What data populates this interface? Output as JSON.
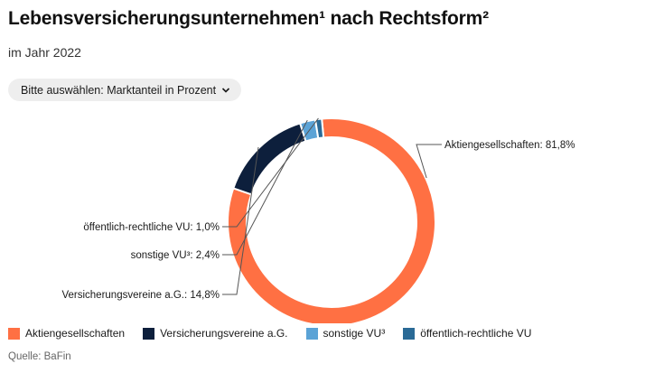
{
  "header": {
    "title": "Lebensversicherungsunternehmen¹ nach Rechtsform²",
    "subtitle": "im Jahr 2022"
  },
  "selector": {
    "label": "Bitte auswählen: Marktanteil in Prozent",
    "icon": "chevron-down-icon"
  },
  "chart_data": {
    "type": "pie",
    "style": "donut",
    "slices": [
      {
        "name": "Aktiengesellschaften",
        "value": 81.8,
        "label": "Aktiengesellschaften: 81,8%",
        "color": "#ff7043"
      },
      {
        "name": "Versicherungsvereine a.G.",
        "value": 14.8,
        "label": "Versicherungsvereine a.G.: 14,8%",
        "color": "#0d1f3c"
      },
      {
        "name": "sonstige VU³",
        "value": 2.4,
        "label": "sonstige VU³: 2,4%",
        "color": "#5ba3d6"
      },
      {
        "name": "öffentlich-rechtliche VU",
        "value": 1.0,
        "label": "öffentlich-rechtliche VU: 1,0%",
        "color": "#2a6a96"
      }
    ],
    "legend_position": "bottom-left"
  },
  "legend": [
    {
      "label": "Aktiengesellschaften",
      "color": "#ff7043"
    },
    {
      "label": "Versicherungsvereine a.G.",
      "color": "#0d1f3c"
    },
    {
      "label": "sonstige VU³",
      "color": "#5ba3d6"
    },
    {
      "label": "öffentlich-rechtliche VU",
      "color": "#2a6a96"
    }
  ],
  "source": "Quelle: BaFin"
}
